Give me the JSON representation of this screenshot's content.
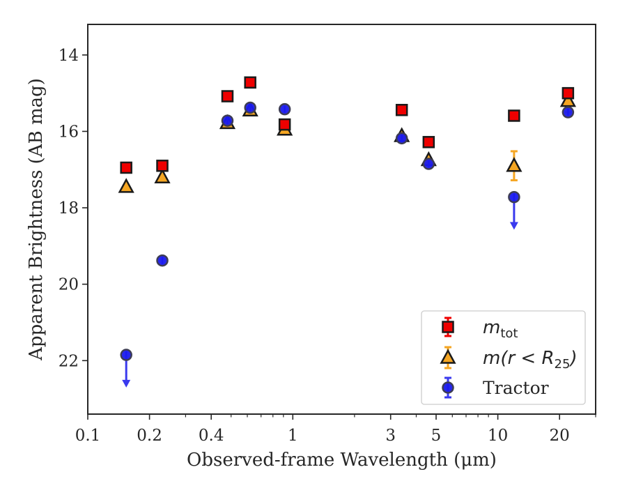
{
  "chart_data": {
    "type": "scatter",
    "title": "",
    "xlabel": "Observed-frame Wavelength (μm)",
    "ylabel": "Apparent Brightness (AB mag)",
    "x_scale": "log",
    "xlim": [
      0.1,
      30
    ],
    "ylim": [
      23.4,
      13.2
    ],
    "y_inverted": true,
    "x_ticks": [
      0.1,
      0.2,
      0.4,
      1,
      3,
      5,
      10,
      20
    ],
    "x_tick_labels": [
      "0.1",
      "0.2",
      "0.4",
      "1",
      "3",
      "5",
      "10",
      "20"
    ],
    "y_ticks": [
      14,
      16,
      18,
      20,
      22
    ],
    "y_tick_labels": [
      "14",
      "16",
      "18",
      "20",
      "22"
    ],
    "grid": false,
    "legend_position": "bottom-right",
    "series": [
      {
        "name": "m_tot",
        "legend_label": "m",
        "legend_subscript": "tot",
        "marker": "square",
        "color": "#ee0000",
        "points": [
          {
            "x": 0.154,
            "y": 16.95
          },
          {
            "x": 0.231,
            "y": 16.9
          },
          {
            "x": 0.48,
            "y": 15.08
          },
          {
            "x": 0.62,
            "y": 14.72
          },
          {
            "x": 0.913,
            "y": 15.82
          },
          {
            "x": 3.4,
            "y": 15.44
          },
          {
            "x": 4.6,
            "y": 16.28
          },
          {
            "x": 12.0,
            "y": 15.59
          },
          {
            "x": 22.0,
            "y": 15.0
          }
        ]
      },
      {
        "name": "m(r < R25)",
        "legend_label": "m(r < R",
        "legend_subscript": "25",
        "legend_suffix": ")",
        "marker": "triangle",
        "color": "#f5a623",
        "points": [
          {
            "x": 0.154,
            "y": 17.45
          },
          {
            "x": 0.231,
            "y": 17.2
          },
          {
            "x": 0.48,
            "y": 15.78
          },
          {
            "x": 0.62,
            "y": 15.45
          },
          {
            "x": 0.913,
            "y": 15.95
          },
          {
            "x": 3.4,
            "y": 16.12
          },
          {
            "x": 4.6,
            "y": 16.75
          },
          {
            "x": 12.0,
            "y": 16.9,
            "err": 0.38
          },
          {
            "x": 22.0,
            "y": 15.2,
            "err": 0.3
          }
        ]
      },
      {
        "name": "Tractor",
        "legend_label": "Tractor",
        "marker": "circle",
        "color": "#1a1aee",
        "points": [
          {
            "x": 0.154,
            "y": 21.85,
            "upper_limit": true
          },
          {
            "x": 0.231,
            "y": 19.38
          },
          {
            "x": 0.48,
            "y": 15.72
          },
          {
            "x": 0.62,
            "y": 15.38
          },
          {
            "x": 0.913,
            "y": 15.42
          },
          {
            "x": 3.4,
            "y": 16.18
          },
          {
            "x": 4.6,
            "y": 16.85
          },
          {
            "x": 12.0,
            "y": 17.72,
            "upper_limit": true
          },
          {
            "x": 22.0,
            "y": 15.5
          }
        ]
      }
    ]
  }
}
